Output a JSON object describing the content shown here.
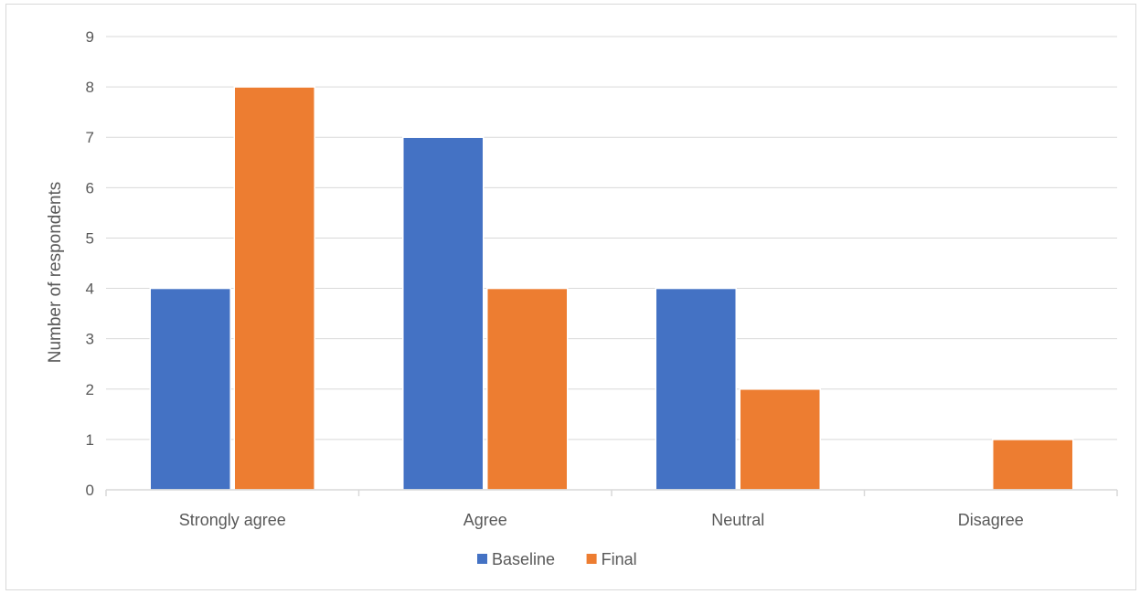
{
  "chart_data": {
    "type": "bar",
    "categories": [
      "Strongly agree",
      "Agree",
      "Neutral",
      "Disagree"
    ],
    "series": [
      {
        "name": "Baseline",
        "values": [
          4,
          7,
          4,
          0
        ],
        "color": "#4472C4"
      },
      {
        "name": "Final",
        "values": [
          8,
          4,
          2,
          1
        ],
        "color": "#ED7D31"
      }
    ],
    "title": "",
    "xlabel": "",
    "ylabel": "Number of respondents",
    "ylim": [
      0,
      9
    ],
    "yticks": [
      0,
      1,
      2,
      3,
      4,
      5,
      6,
      7,
      8,
      9
    ],
    "grid": true,
    "legend": "bottom-center",
    "gridline_color": "#d9d9d9",
    "text_color": "#595959"
  }
}
